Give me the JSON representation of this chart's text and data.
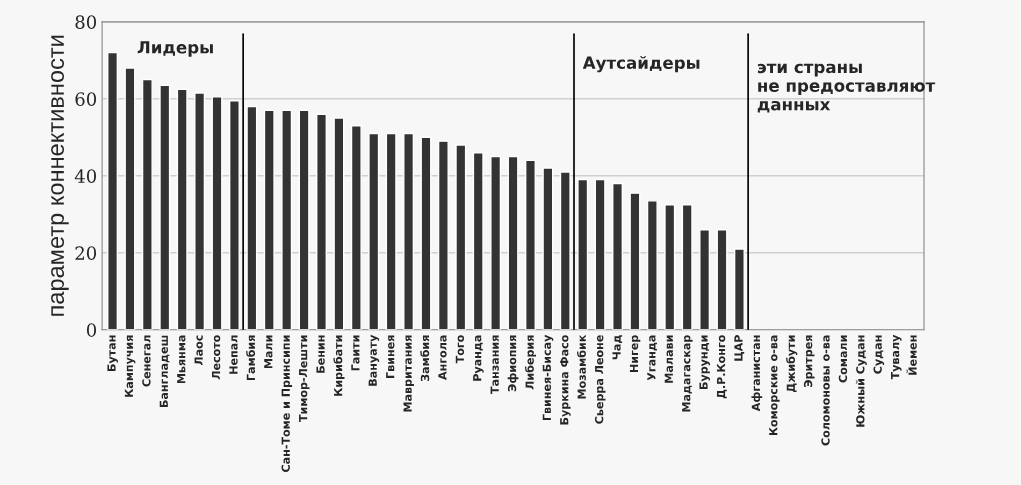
{
  "chart_data": {
    "type": "bar",
    "ylabel": "параметр коннективности",
    "categories": [
      "Бутан",
      "Кампучия",
      "Сенегал",
      "Бангладеш",
      "Мьянма",
      "Лаос",
      "Лесото",
      "Непал",
      "Гамбия",
      "Мали",
      "Сан-Томе и Принсипи",
      "Тимор-Лешти",
      "Бенин",
      "Кирибати",
      "Гаити",
      "Вануату",
      "Гвинея",
      "Мавритания",
      "Замбия",
      "Ангола",
      "Того",
      "Руанда",
      "Танзания",
      "Эфиопия",
      "Либерия",
      "Гвинея-Бисау",
      "Буркина Фасо",
      "Мозамбик",
      "Сьерра Леоне",
      "Чад",
      "Нигер",
      "Уганда",
      "Малави",
      "Мадагаскар",
      "Бурунди",
      "Д.Р.Конго",
      "ЦАР",
      "Афганистан",
      "Коморские о-ва",
      "Джибути",
      "Эритрея",
      "Соломоновы о-ва",
      "Сомали",
      "Южный Судан",
      "Судан",
      "Тувалу",
      "Йемен"
    ],
    "values": [
      72,
      68,
      65,
      63.5,
      62.5,
      61.5,
      60.5,
      59.5,
      58,
      57,
      57,
      57,
      56,
      55,
      53,
      51,
      51,
      51,
      50,
      49,
      48,
      46,
      45,
      45,
      44,
      42,
      41,
      39,
      39,
      38,
      35.5,
      33.5,
      32.5,
      32.5,
      26,
      26,
      21,
      null,
      null,
      null,
      null,
      null,
      null,
      null,
      null,
      null,
      null
    ],
    "color": "#333333",
    "ylim": [
      0,
      80
    ],
    "yticks": [
      0,
      20,
      40,
      60,
      80
    ],
    "grid": "y",
    "annotations": [
      "Лидеры",
      "Аутсайдеры",
      "эти страны\nне предоставляют\nданных"
    ]
  }
}
